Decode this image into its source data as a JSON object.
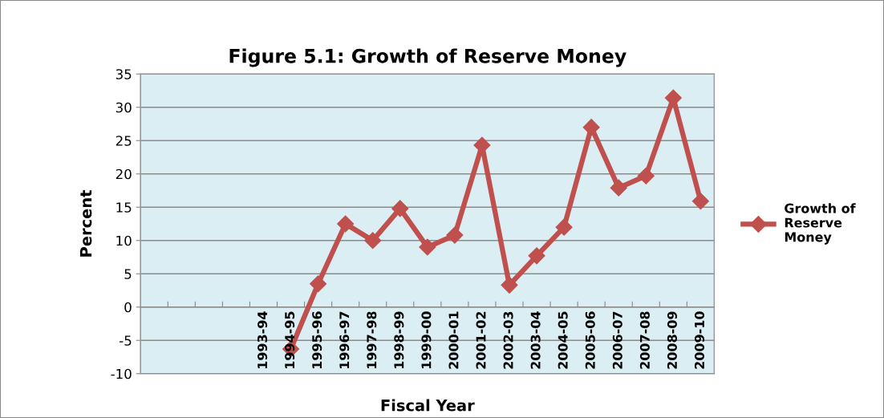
{
  "chart_data": {
    "type": "line",
    "title": "Figure 5.1: Growth of Reserve Money",
    "xlabel": "Fiscal Year",
    "ylabel": "Percent",
    "categories": [
      null,
      null,
      null,
      null,
      "1993-94",
      "1994-95",
      "1995-96",
      "1996-97",
      "1997-98",
      "1998-99",
      "1999-00",
      "2000-01",
      "2001-02",
      "2002-03",
      "2003-04",
      "2004-05",
      "2005-06",
      "2006-07",
      "2007-08",
      "2008-09",
      "2009-10"
    ],
    "series": [
      {
        "name": "Growth of\nReserve\nMoney",
        "color": "#c0504d",
        "values": [
          null,
          null,
          null,
          null,
          null,
          -6.3,
          3.5,
          12.5,
          10,
          14.8,
          9,
          10.8,
          24.3,
          3.3,
          7.7,
          12,
          27,
          17.9,
          19.7,
          31.4,
          15.9
        ]
      }
    ],
    "ylim": [
      -10,
      35
    ],
    "yticks": [
      -10,
      -5,
      0,
      5,
      10,
      15,
      20,
      25,
      30,
      35
    ],
    "grid": "y",
    "legend": "right",
    "marker": "diamond",
    "line_style": "solid"
  }
}
